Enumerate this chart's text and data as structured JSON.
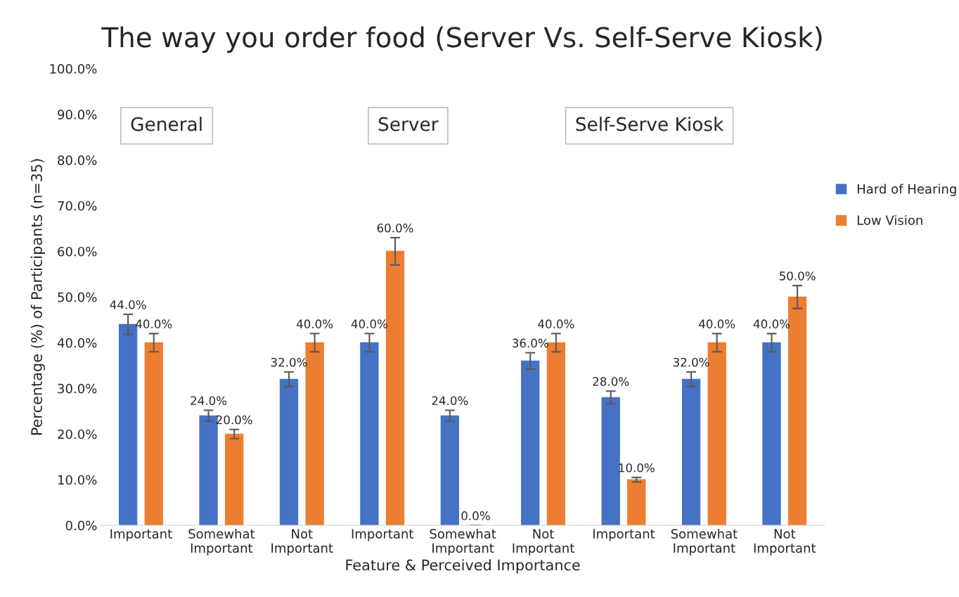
{
  "chart_data": {
    "type": "bar",
    "title": "The way you order food (Server Vs. Self-Serve Kiosk)",
    "xlabel": "Feature & Perceived Importance",
    "ylabel": "Percentage (%) of Participants (n=35)",
    "categories": [
      "Important",
      "Somewhat\nImportant",
      "Not\nImportant",
      "Important",
      "Somewhat\nImportant",
      "Not\nImportant",
      "Important",
      "Somewhat\nImportant",
      "Not\nImportant"
    ],
    "series": [
      {
        "name": "Hard of Hearing",
        "color": "#4472c4",
        "values": [
          44,
          24,
          32,
          40,
          24,
          36,
          28,
          32,
          40
        ],
        "errors": [
          2.2,
          1.2,
          1.6,
          2,
          1.2,
          1.8,
          1.4,
          1.6,
          2
        ],
        "value_labels": [
          "44.0%",
          "24.0%",
          "32.0%",
          "40.0%",
          "24.0%",
          "36.0%",
          "28.0%",
          "32.0%",
          "40.0%"
        ]
      },
      {
        "name": "Low Vision",
        "color": "#ed7d31",
        "values": [
          40,
          20,
          40,
          60,
          0,
          40,
          10,
          40,
          50
        ],
        "errors": [
          2,
          1,
          2,
          3,
          0,
          2,
          0.5,
          2,
          2.5
        ],
        "value_labels": [
          "40.0%",
          "20.0%",
          "40.0%",
          "60.0%",
          "0.0%",
          "40.0%",
          "10.0%",
          "40.0%",
          "50.0%"
        ]
      }
    ],
    "annotations": [
      "General",
      "Server",
      "Self-Serve Kiosk"
    ],
    "ylim": [
      0,
      100
    ],
    "yticks": [
      {
        "value": 0,
        "label": "0.0%"
      },
      {
        "value": 10,
        "label": "10.0%"
      },
      {
        "value": 20,
        "label": "20.0%"
      },
      {
        "value": 30,
        "label": "30.0%"
      },
      {
        "value": 40,
        "label": "40.0%"
      },
      {
        "value": 50,
        "label": "50.0%"
      },
      {
        "value": 60,
        "label": "60.0%"
      },
      {
        "value": 70,
        "label": "70.0%"
      },
      {
        "value": 80,
        "label": "80.0%"
      },
      {
        "value": 90,
        "label": "90.0%"
      },
      {
        "value": 100,
        "label": "100.0%"
      }
    ],
    "grid": false,
    "legend": "right"
  }
}
